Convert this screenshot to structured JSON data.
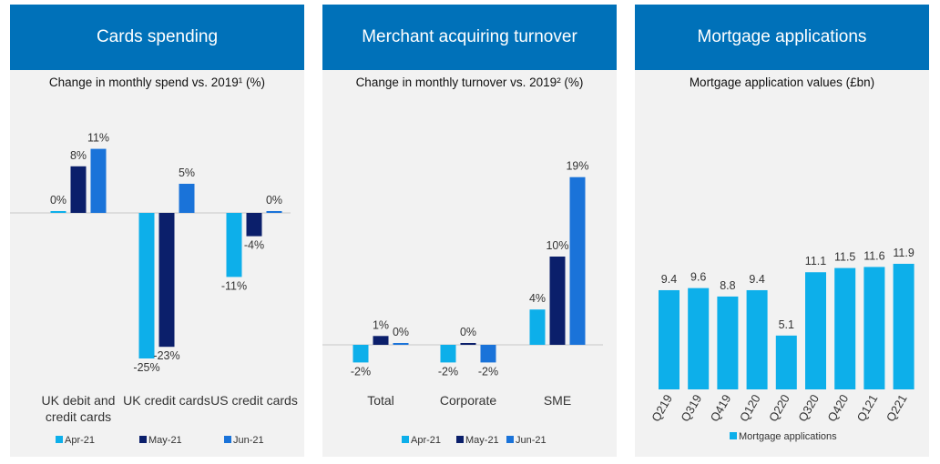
{
  "colors": {
    "header_bg": "#0071b9",
    "apr": "#0dafea",
    "may": "#0b1f6b",
    "jun": "#1a73d9",
    "mortgage": "#0dafea"
  },
  "chart_data": [
    {
      "type": "bar",
      "title": "Cards spending",
      "subtitle": "Change in monthly spend vs. 2019¹ (%)",
      "categories": [
        "UK debit and credit cards",
        "UK credit cards",
        "US credit cards"
      ],
      "series": [
        {
          "name": "Apr-21",
          "values": [
            0,
            -25,
            -11
          ],
          "labels": [
            "0%",
            "-25%",
            "-11%"
          ]
        },
        {
          "name": "May-21",
          "values": [
            8,
            -23,
            -4
          ],
          "labels": [
            "8%",
            "-23%",
            "-4%"
          ]
        },
        {
          "name": "Jun-21",
          "values": [
            11,
            5,
            0
          ],
          "labels": [
            "11%",
            "5%",
            "0%"
          ]
        }
      ],
      "ylim": [
        -25,
        11
      ],
      "grid": false,
      "legend": "bottom"
    },
    {
      "type": "bar",
      "title": "Merchant acquiring turnover",
      "subtitle": "Change in monthly turnover vs. 2019² (%)",
      "categories": [
        "Total",
        "Corporate",
        "SME"
      ],
      "series": [
        {
          "name": "Apr-21",
          "values": [
            -2,
            -2,
            4
          ],
          "labels": [
            "-2%",
            "-2%",
            "4%"
          ]
        },
        {
          "name": "May-21",
          "values": [
            1,
            0,
            10
          ],
          "labels": [
            "1%",
            "0%",
            "10%"
          ]
        },
        {
          "name": "Jun-21",
          "values": [
            0,
            -2,
            19
          ],
          "labels": [
            "0%",
            "-2%",
            "19%"
          ]
        }
      ],
      "ylim": [
        -2,
        19
      ],
      "grid": false,
      "legend": "bottom"
    },
    {
      "type": "bar",
      "title": "Mortgage applications",
      "subtitle": "Mortgage application values (£bn)",
      "categories": [
        "Q219",
        "Q319",
        "Q419",
        "Q120",
        "Q220",
        "Q320",
        "Q420",
        "Q121",
        "Q221"
      ],
      "series": [
        {
          "name": "Mortgage applications",
          "values": [
            9.4,
            9.6,
            8.8,
            9.4,
            5.1,
            11.1,
            11.5,
            11.6,
            11.9
          ],
          "labels": [
            "9.4",
            "9.6",
            "8.8",
            "9.4",
            "5.1",
            "11.1",
            "11.5",
            "11.6",
            "11.9"
          ]
        }
      ],
      "ylim": [
        0,
        11.9
      ],
      "grid": false,
      "legend": "bottom"
    }
  ]
}
